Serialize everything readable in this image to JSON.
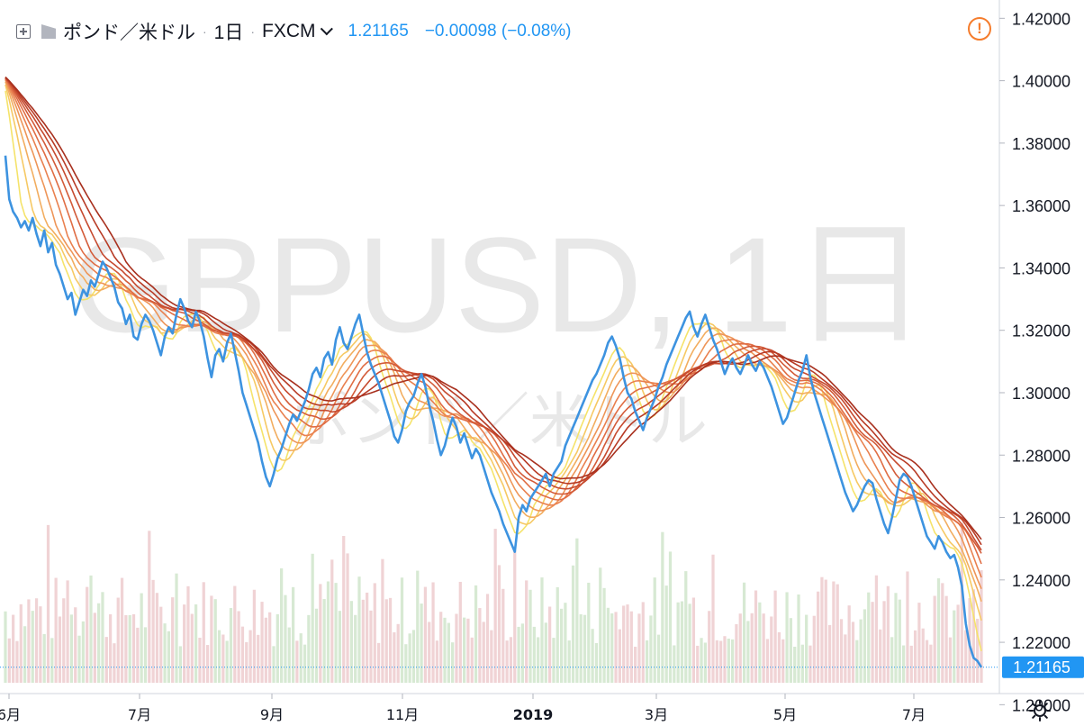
{
  "header": {
    "add_icon": "plus-square-icon",
    "flag_icon": "flag-icon",
    "symbol": "ポンド／米ドル",
    "separator": "·",
    "interval": "1日",
    "exchange": "FXCM",
    "dropdown_icon": "chevron-down-icon",
    "last_price": "1.21165",
    "change": "−0.00098 (−0.08%)"
  },
  "warning_icon": "warning-circle-icon",
  "settings_icon": "gear-icon",
  "watermark": {
    "title": "GBPUSD, 1日",
    "subtitle": "ポンド／米ドル"
  },
  "price_label": "1.21165",
  "colors": {
    "price_line": "#3d93e0",
    "accent": "#2196f3",
    "warning": "#f57c2c",
    "volume_up": "#d7e9d3",
    "volume_down": "#f0d3d5",
    "ribbon": [
      "#f5e36a",
      "#f6c964",
      "#f2ad5f",
      "#ee9558",
      "#e9804f",
      "#e06d44",
      "#d35b39",
      "#c64a2f",
      "#b83b25",
      "#a8301e"
    ]
  },
  "chart_data": {
    "type": "line",
    "y_axis": {
      "range": [
        1.19,
        1.425
      ],
      "ticks": [
        "1.42000",
        "1.40000",
        "1.38000",
        "1.36000",
        "1.34000",
        "1.32000",
        "1.30000",
        "1.28000",
        "1.26000",
        "1.24000",
        "1.22000",
        "1.20000"
      ]
    },
    "x_axis": {
      "ticks": [
        "6月",
        "7月",
        "9月",
        "11月",
        "2019",
        "3月",
        "5月",
        "7月"
      ]
    },
    "series": [
      {
        "values": [
          1.376,
          1.362,
          1.358,
          1.356,
          1.353,
          1.355,
          1.352,
          1.356,
          1.351,
          1.347,
          1.352,
          1.345,
          1.348,
          1.341,
          1.338,
          1.334,
          1.33,
          1.332,
          1.325,
          1.329,
          1.333,
          1.331,
          1.336,
          1.334,
          1.338,
          1.342,
          1.34,
          1.337,
          1.334,
          1.329,
          1.327,
          1.322,
          1.325,
          1.318,
          1.317,
          1.322,
          1.325,
          1.323,
          1.32,
          1.316,
          1.312,
          1.318,
          1.321,
          1.319,
          1.325,
          1.33,
          1.327,
          1.323,
          1.321,
          1.326,
          1.323,
          1.318,
          1.311,
          1.305,
          1.312,
          1.314,
          1.31,
          1.316,
          1.319,
          1.313,
          1.307,
          1.3,
          1.296,
          1.292,
          1.288,
          1.284,
          1.278,
          1.273,
          1.27,
          1.274,
          1.279,
          1.282,
          1.286,
          1.29,
          1.293,
          1.291,
          1.294,
          1.297,
          1.301,
          1.306,
          1.308,
          1.305,
          1.311,
          1.313,
          1.309,
          1.317,
          1.321,
          1.316,
          1.314,
          1.318,
          1.322,
          1.325,
          1.319,
          1.313,
          1.309,
          1.306,
          1.303,
          1.299,
          1.295,
          1.291,
          1.286,
          1.284,
          1.288,
          1.294,
          1.297,
          1.299,
          1.303,
          1.306,
          1.302,
          1.296,
          1.291,
          1.285,
          1.28,
          1.283,
          1.288,
          1.292,
          1.289,
          1.284,
          1.287,
          1.283,
          1.279,
          1.282,
          1.28,
          1.276,
          1.272,
          1.268,
          1.265,
          1.262,
          1.258,
          1.255,
          1.252,
          1.249,
          1.26,
          1.264,
          1.262,
          1.266,
          1.268,
          1.27,
          1.272,
          1.274,
          1.27,
          1.274,
          1.276,
          1.278,
          1.283,
          1.286,
          1.289,
          1.292,
          1.295,
          1.298,
          1.301,
          1.304,
          1.306,
          1.309,
          1.312,
          1.316,
          1.318,
          1.315,
          1.311,
          1.305,
          1.3,
          1.298,
          1.294,
          1.291,
          1.288,
          1.292,
          1.295,
          1.298,
          1.302,
          1.305,
          1.309,
          1.312,
          1.315,
          1.318,
          1.321,
          1.324,
          1.326,
          1.321,
          1.318,
          1.322,
          1.325,
          1.321,
          1.317,
          1.314,
          1.31,
          1.306,
          1.309,
          1.311,
          1.308,
          1.306,
          1.309,
          1.312,
          1.309,
          1.307,
          1.31,
          1.308,
          1.305,
          1.302,
          1.298,
          1.294,
          1.29,
          1.292,
          1.296,
          1.3,
          1.304,
          1.307,
          1.312,
          1.305,
          1.3,
          1.296,
          1.292,
          1.288,
          1.284,
          1.28,
          1.276,
          1.272,
          1.268,
          1.265,
          1.262,
          1.264,
          1.267,
          1.27,
          1.272,
          1.271,
          1.266,
          1.262,
          1.258,
          1.255,
          1.26,
          1.266,
          1.272,
          1.274,
          1.273,
          1.27,
          1.266,
          1.262,
          1.258,
          1.254,
          1.252,
          1.25,
          1.254,
          1.252,
          1.249,
          1.247,
          1.248,
          1.244,
          1.238,
          1.226,
          1.219,
          1.215,
          1.214,
          1.212
        ]
      }
    ],
    "ribbon_ma_periods": [
      5,
      8,
      11,
      14,
      17,
      20,
      23,
      26,
      29,
      32
    ]
  }
}
